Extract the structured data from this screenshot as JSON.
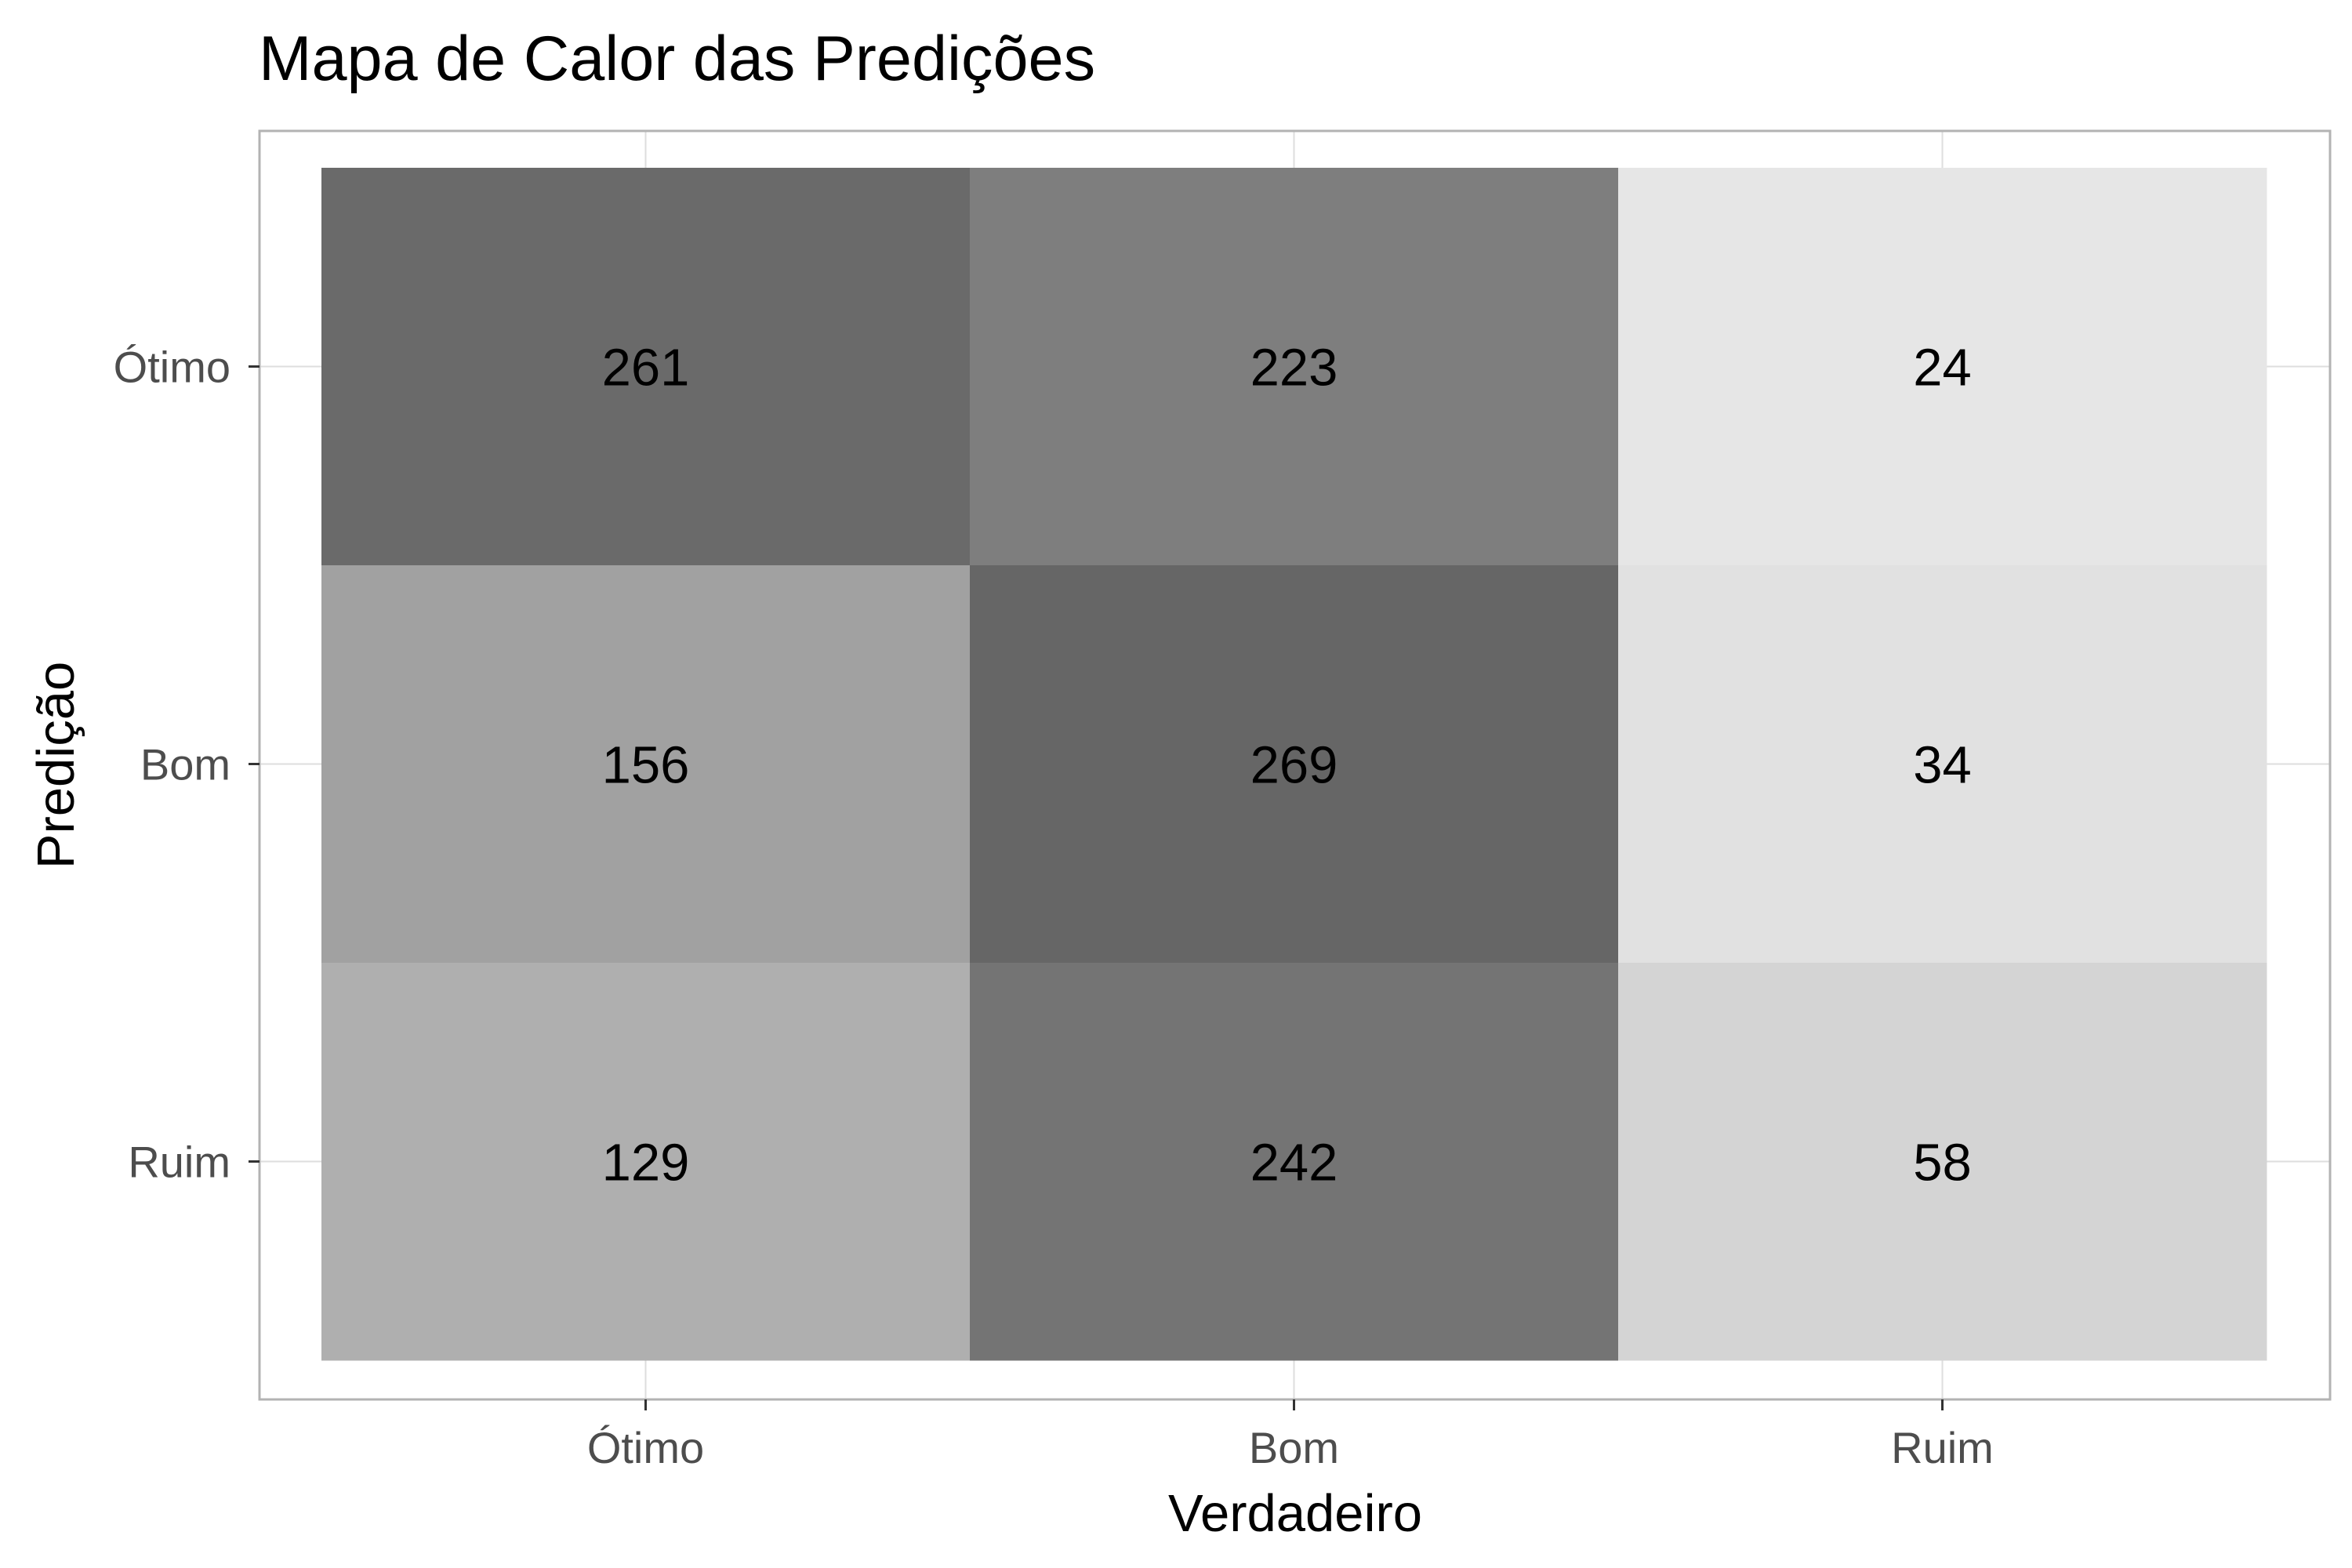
{
  "chart_data": {
    "type": "heatmap",
    "title": "Mapa de Calor das Predições",
    "xlabel": "Verdadeiro",
    "ylabel": "Predição",
    "x_categories": [
      "Ótimo",
      "Bom",
      "Ruim"
    ],
    "y_categories": [
      "Ótimo",
      "Bom",
      "Ruim"
    ],
    "values": [
      [
        261,
        223,
        24
      ],
      [
        156,
        269,
        34
      ],
      [
        129,
        242,
        58
      ]
    ],
    "color_scale": {
      "low": "#e6e6e6",
      "high": "#666666"
    },
    "grid": true,
    "legend": "none"
  }
}
